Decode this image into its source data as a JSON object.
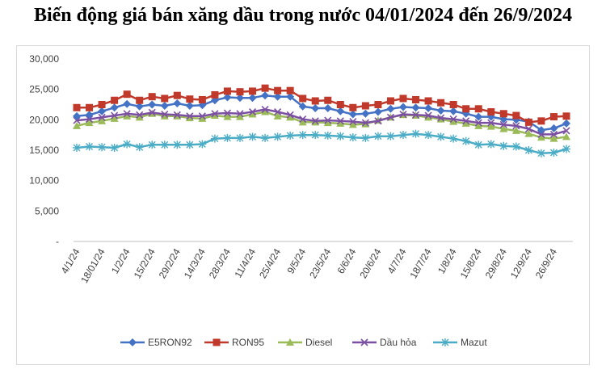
{
  "title": "Biến động giá bán xăng dầu trong nước 04/01/2024 đến 26/9/2024",
  "chart_data": {
    "type": "line",
    "title": "Biến động giá bán xăng dầu trong nước 04/01/2024 đến 26/9/2024",
    "xlabel": "",
    "ylabel": "",
    "ylim": [
      0,
      30000
    ],
    "y_ticks": [
      "-",
      "5,000",
      "10,000",
      "15,000",
      "20,000",
      "25,000",
      "30,000"
    ],
    "x_tick_labels": [
      "4/1/24",
      "18/01/24",
      "1/2/24",
      "15/2/24",
      "29/2/24",
      "14/3/24",
      "28/3/24",
      "11/4/24",
      "25/4/24",
      "9/5/24",
      "23/5/24",
      "6/6/24",
      "20/6/24",
      "4/7/24",
      "18/7/24",
      "1/8/24",
      "15/8/24",
      "29/8/24",
      "12/9/24",
      "26/9/24"
    ],
    "x_points_per_tick": 2,
    "grid": false,
    "legend_position": "bottom",
    "series": [
      {
        "name": "E5RON92",
        "color": "#4472c4",
        "marker": "diamond",
        "values": [
          20600,
          20800,
          21400,
          22000,
          22600,
          22200,
          22500,
          22300,
          22700,
          22300,
          22400,
          23200,
          23700,
          23600,
          23600,
          24000,
          23800,
          23800,
          22200,
          21900,
          21900,
          21400,
          20900,
          21000,
          21300,
          21800,
          22100,
          22000,
          21900,
          21500,
          21400,
          21000,
          20500,
          20500,
          20100,
          20000,
          19700,
          18300,
          18600,
          19400
        ]
      },
      {
        "name": "RON95",
        "color": "#c0392b",
        "marker": "square",
        "values": [
          22000,
          22000,
          22500,
          23200,
          24200,
          23200,
          23800,
          23500,
          24000,
          23400,
          23300,
          24100,
          24700,
          24600,
          24700,
          25200,
          24800,
          24800,
          23500,
          23100,
          23200,
          22500,
          22000,
          22300,
          22500,
          23100,
          23500,
          23300,
          23100,
          22800,
          22500,
          21800,
          21800,
          21300,
          21000,
          20700,
          19600,
          19800,
          20500,
          20600
        ]
      },
      {
        "name": "Diesel",
        "color": "#9bbb59",
        "marker": "triangle",
        "values": [
          19000,
          19500,
          19800,
          20200,
          20600,
          20400,
          21000,
          20600,
          20600,
          20300,
          20200,
          20700,
          20500,
          20500,
          20900,
          21300,
          20600,
          20400,
          19600,
          19600,
          19500,
          19400,
          19200,
          19300,
          19900,
          20400,
          20800,
          20700,
          20400,
          20100,
          19700,
          19400,
          19000,
          18900,
          18500,
          18200,
          17700,
          17100,
          16900,
          17200
        ]
      },
      {
        "name": "Dầu hỏa",
        "color": "#7b4fa2",
        "marker": "x",
        "values": [
          19900,
          20100,
          20400,
          20700,
          21000,
          20800,
          21200,
          20900,
          20800,
          20600,
          20600,
          21000,
          21100,
          21000,
          21300,
          21700,
          21300,
          20800,
          20100,
          19800,
          19900,
          19800,
          19700,
          19500,
          19800,
          20400,
          20900,
          20800,
          20700,
          20300,
          20100,
          19800,
          19500,
          19500,
          19200,
          19000,
          18500,
          17600,
          17600,
          18200
        ]
      },
      {
        "name": "Mazut",
        "color": "#4bacc6",
        "marker": "star",
        "values": [
          15400,
          15600,
          15500,
          15400,
          16000,
          15500,
          15900,
          15900,
          15900,
          15900,
          16000,
          16900,
          17000,
          17000,
          17200,
          17000,
          17200,
          17400,
          17500,
          17500,
          17400,
          17300,
          17100,
          17000,
          17300,
          17300,
          17500,
          17700,
          17500,
          17200,
          16900,
          16500,
          15900,
          16000,
          15700,
          15600,
          15000,
          14500,
          14600,
          15200
        ]
      }
    ]
  }
}
